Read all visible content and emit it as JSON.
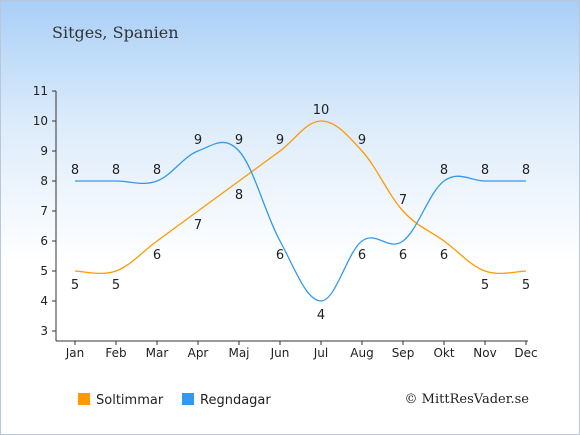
{
  "chart_data": {
    "type": "line",
    "title": "Sitges, Spanien",
    "categories": [
      "Jan",
      "Feb",
      "Mar",
      "Apr",
      "Maj",
      "Jun",
      "Jul",
      "Aug",
      "Sep",
      "Okt",
      "Nov",
      "Dec"
    ],
    "series": [
      {
        "name": "Soltimmar",
        "color": "#ff9900",
        "values": [
          5,
          5,
          6,
          7,
          8,
          9,
          10,
          9,
          7,
          6,
          5,
          5
        ]
      },
      {
        "name": "Regndagar",
        "color": "#3399ee",
        "values": [
          8,
          8,
          8,
          9,
          9,
          6,
          4,
          6,
          6,
          8,
          8,
          8
        ]
      }
    ],
    "ylim": [
      3,
      11
    ],
    "yticks": [
      3,
      4,
      5,
      6,
      7,
      8,
      9,
      10,
      11
    ],
    "grid": false,
    "legend_position": "bottom-left"
  },
  "credit": "© MittResVader.se"
}
